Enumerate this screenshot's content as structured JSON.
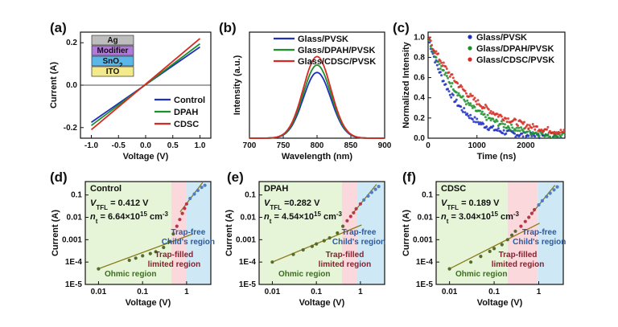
{
  "colors": {
    "control": "#1f2fbf",
    "dpah": "#1d8f2c",
    "cdsc": "#d62a22",
    "ohmic_bg": "#e6f5d8",
    "tfl_bg": "#fbd8dc",
    "child_bg": "#cfe8f6",
    "fit_line": "#8a7a1a"
  },
  "chart_data": [
    {
      "id": "a",
      "panel_label": "(a)",
      "type": "line",
      "xlabel": "Voltage (V)",
      "ylabel": "Current (A)",
      "xlim": [
        -1.2,
        1.2
      ],
      "ylim": [
        -0.25,
        0.25
      ],
      "xticks": [
        -1.0,
        -0.5,
        0.0,
        0.5,
        1.0
      ],
      "xtick_labels": [
        "-1.0",
        "-0.5",
        "0.0",
        "0.5",
        "1.0"
      ],
      "yticks": [
        -0.2,
        0.0,
        0.2
      ],
      "ytick_labels": [
        "-0.2",
        "0.0",
        "0.2"
      ],
      "inset_layers": [
        "Ag",
        "Modifier",
        "SnO2",
        "ITO"
      ],
      "inset_layer_colors": [
        "#bdbdbd",
        "#b07ad8",
        "#5bb7e8",
        "#f3ea8c"
      ],
      "series": [
        {
          "name": "Control",
          "color": "#1f2fbf",
          "x": [
            -1.0,
            1.0
          ],
          "y": [
            -0.175,
            0.18
          ]
        },
        {
          "name": "DPAH",
          "color": "#1d8f2c",
          "x": [
            -1.0,
            1.0
          ],
          "y": [
            -0.19,
            0.195
          ]
        },
        {
          "name": "CDSC",
          "color": "#d62a22",
          "x": [
            -1.0,
            1.0
          ],
          "y": [
            -0.21,
            0.22
          ]
        }
      ]
    },
    {
      "id": "b",
      "panel_label": "(b)",
      "type": "line",
      "xlabel": "Wavelength (nm)",
      "ylabel": "Intensity (a.u.)",
      "xlim": [
        700,
        900
      ],
      "xticks": [
        700,
        750,
        800,
        850,
        900
      ],
      "xtick_labels": [
        "700",
        "750",
        "800",
        "850",
        "900"
      ],
      "series": [
        {
          "name": "Glass/PVSK",
          "color": "#1f2fbf",
          "peak_nm": 800,
          "fwhm_nm": 48,
          "peak": 0.62
        },
        {
          "name": "Glass/DPAH/PVSK",
          "color": "#1d8f2c",
          "peak_nm": 800,
          "fwhm_nm": 48,
          "peak": 0.69
        },
        {
          "name": "Glass/CDSC/PVSK",
          "color": "#d62a22",
          "peak_nm": 800,
          "fwhm_nm": 48,
          "peak": 0.77
        }
      ]
    },
    {
      "id": "c",
      "panel_label": "(c)",
      "type": "scatter",
      "xlabel": "Time (ns)",
      "ylabel": "Normalized Intensity",
      "xlim": [
        0,
        2800
      ],
      "ylim": [
        0,
        1.05
      ],
      "xticks": [
        0,
        1000,
        2000
      ],
      "xtick_labels": [
        "0",
        "1000",
        "2000"
      ],
      "yticks": [
        0.0,
        0.2,
        0.4,
        0.6,
        0.8,
        1.0
      ],
      "ytick_labels": [
        "0.0",
        "0.2",
        "0.4",
        "0.6",
        "0.8",
        "1.0"
      ],
      "series": [
        {
          "name": "Glass/PVSK",
          "color": "#1f2fbf",
          "tau_ns": 560
        },
        {
          "name": "Glass/DPAH/PVSK",
          "color": "#1d8f2c",
          "tau_ns": 760
        },
        {
          "name": "Glass/CDSC/PVSK",
          "color": "#d62a22",
          "tau_ns": 980
        }
      ]
    },
    {
      "id": "d",
      "panel_label": "(d)",
      "type": "scatter",
      "scale": "log-log",
      "xlabel": "Voltage (V)",
      "ylabel": "Current (A)",
      "xlim_log": [
        -2.3,
        0.55
      ],
      "ylim_log": [
        -5,
        -0.4
      ],
      "xticks": [
        0.01,
        0.1,
        1
      ],
      "xtick_labels": [
        "0.01",
        "0.1",
        "1"
      ],
      "yticks": [
        1e-05,
        0.0001,
        0.001,
        0.01,
        0.1
      ],
      "ytick_labels": [
        "1E-5",
        "1E-4",
        "0.001",
        "0.01",
        "0.1"
      ],
      "region_bounds_v": [
        0.45,
        1.0
      ],
      "sample": "Control",
      "vtfl_text": "= 0.412 V",
      "nt_text": "= 6.64×10",
      "nt_exp": "15",
      "nt_unit": " cm",
      "nt_unit_exp": "-3",
      "ohmic_label": "Ohmic region",
      "tfl_label": [
        "Trap-filled",
        "limited region"
      ],
      "child_label": [
        "Trap-free",
        "Child's region"
      ],
      "points_x": [
        0.01,
        0.05,
        0.07,
        0.1,
        0.15,
        0.2,
        0.3,
        0.4,
        0.5,
        0.6,
        0.7,
        0.8,
        0.9,
        1.0,
        1.2,
        1.5,
        1.8,
        2.2,
        2.6
      ],
      "points_y": [
        5e-05,
        0.00012,
        0.00015,
        0.00019,
        0.00024,
        0.00029,
        0.00045,
        0.0008,
        0.0018,
        0.004,
        0.008,
        0.015,
        0.025,
        0.04,
        0.07,
        0.11,
        0.16,
        0.22,
        0.27
      ]
    },
    {
      "id": "e",
      "panel_label": "(e)",
      "type": "scatter",
      "scale": "log-log",
      "xlabel": "Voltage (V)",
      "ylabel": "Current (A)",
      "xlim_log": [
        -2.3,
        0.55
      ],
      "ylim_log": [
        -5,
        -0.4
      ],
      "xticks": [
        0.01,
        0.1,
        1
      ],
      "xtick_labels": [
        "0.01",
        "0.1",
        "1"
      ],
      "yticks": [
        1e-05,
        0.0001,
        0.001,
        0.01,
        0.1
      ],
      "ytick_labels": [
        "1E-5",
        "1E-4",
        "0.001",
        "0.01",
        "0.1"
      ],
      "region_bounds_v": [
        0.38,
        0.85
      ],
      "sample": "DPAH",
      "vtfl_text": "=0.282 V",
      "nt_text": "= 4.54×10",
      "nt_exp": "15",
      "nt_unit": " cm",
      "nt_unit_exp": "-3",
      "ohmic_label": "Ohmic region",
      "tfl_label": [
        "Trap-filled",
        "limited region"
      ],
      "child_label": [
        "Trap-free",
        "Child's region"
      ],
      "points_x": [
        0.01,
        0.03,
        0.05,
        0.08,
        0.1,
        0.15,
        0.2,
        0.3,
        0.4,
        0.5,
        0.6,
        0.7,
        0.8,
        1.0,
        1.2,
        1.5,
        1.8,
        2.2,
        2.6
      ],
      "points_y": [
        0.0001,
        0.00022,
        0.00035,
        0.0005,
        0.00065,
        0.0009,
        0.0012,
        0.002,
        0.004,
        0.007,
        0.011,
        0.016,
        0.024,
        0.04,
        0.06,
        0.09,
        0.13,
        0.18,
        0.24
      ]
    },
    {
      "id": "f",
      "panel_label": "(f)",
      "type": "scatter",
      "scale": "log-log",
      "xlabel": "Voltage (V)",
      "ylabel": "Current (A)",
      "xlim_log": [
        -2.3,
        0.55
      ],
      "ylim_log": [
        -5,
        -0.4
      ],
      "xticks": [
        0.01,
        0.1,
        1
      ],
      "xtick_labels": [
        "0.01",
        "0.1",
        "1"
      ],
      "yticks": [
        1e-05,
        0.0001,
        0.001,
        0.01,
        0.1
      ],
      "ytick_labels": [
        "1E-5",
        "1E-4",
        "0.001",
        "0.01",
        "0.1"
      ],
      "region_bounds_v": [
        0.2,
        0.95
      ],
      "sample": "CDSC",
      "vtfl_text": "= 0.189 V",
      "nt_text": "= 3.04×10",
      "nt_exp": "15",
      "nt_unit": " cm",
      "nt_unit_exp": "-3",
      "ohmic_label": "Ohmic region",
      "tfl_label": [
        "Trap-filled",
        "limited region"
      ],
      "child_label": [
        "Trap-free",
        "Child's region"
      ],
      "points_x": [
        0.01,
        0.03,
        0.05,
        0.08,
        0.1,
        0.15,
        0.2,
        0.25,
        0.3,
        0.4,
        0.5,
        0.6,
        0.7,
        0.8,
        1.0,
        1.2,
        1.5,
        1.8,
        2.2,
        2.6
      ],
      "points_y": [
        5e-05,
        0.0001,
        0.00018,
        0.0003,
        0.0004,
        0.0006,
        0.001,
        0.0016,
        0.0024,
        0.004,
        0.0065,
        0.01,
        0.015,
        0.022,
        0.036,
        0.055,
        0.085,
        0.12,
        0.17,
        0.23
      ]
    }
  ]
}
